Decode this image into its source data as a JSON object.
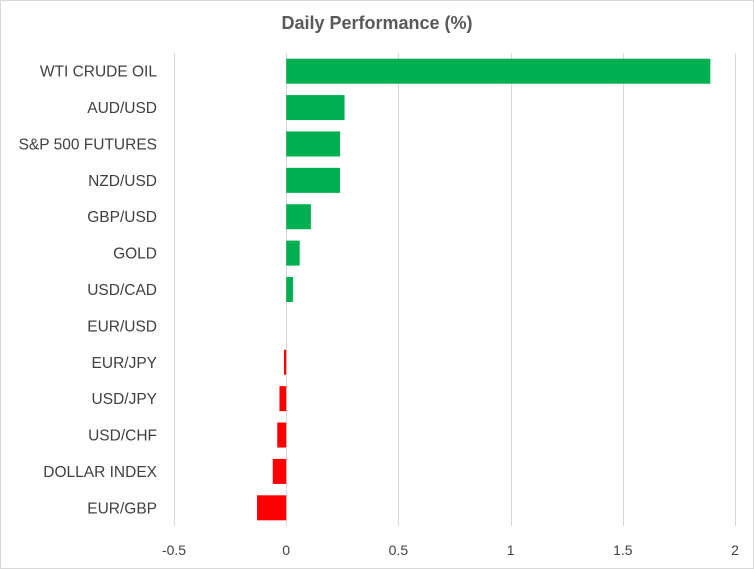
{
  "chart_data": {
    "type": "bar",
    "orientation": "horizontal",
    "title": "Daily Performance (%)",
    "xlabel": "",
    "ylabel": "",
    "xlim": [
      -0.5,
      2
    ],
    "xticks": [
      -0.5,
      0,
      0.5,
      1,
      1.5,
      2
    ],
    "xtick_labels": [
      "-0.5",
      "0",
      "0.5",
      "1",
      "1.5",
      "2"
    ],
    "grid": true,
    "legend": "none",
    "categories": [
      "WTI CRUDE OIL",
      "AUD/USD",
      "S&P 500 FUTURES",
      "NZD/USD",
      "GBP/USD",
      "GOLD",
      "USD/CAD",
      "EUR/USD",
      "EUR/JPY",
      "USD/JPY",
      "USD/CHF",
      "DOLLAR INDEX",
      "EUR/GBP"
    ],
    "values": [
      1.89,
      0.26,
      0.24,
      0.24,
      0.11,
      0.06,
      0.03,
      0.0,
      -0.01,
      -0.03,
      -0.04,
      -0.06,
      -0.13
    ],
    "colors": {
      "positive": "#00b050",
      "negative": "#ff0000",
      "grid": "#d9d9d9",
      "text": "#404040",
      "title": "#595959"
    }
  }
}
